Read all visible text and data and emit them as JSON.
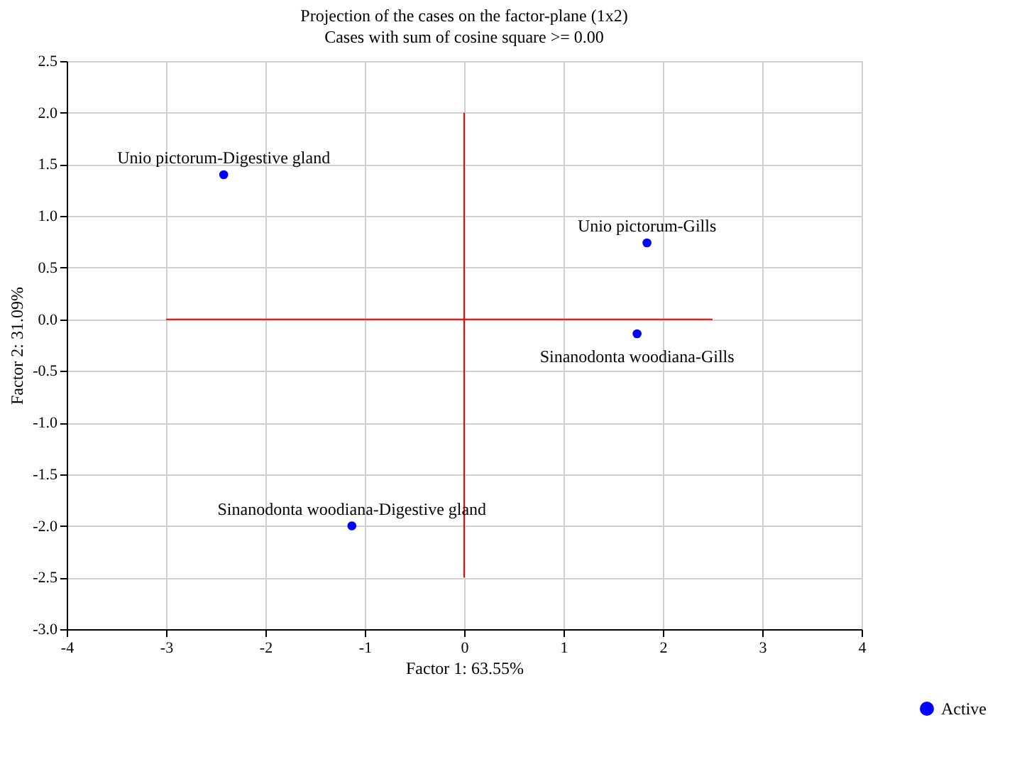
{
  "chart_data": {
    "type": "scatter",
    "title": "Projection of the cases on the factor-plane (1x2)",
    "subtitle": "Cases with sum of cosine square >=  0.00",
    "xlabel": "Factor 1: 63.55%",
    "ylabel": "Factor 2: 31.09%",
    "xlim": [
      -4,
      4
    ],
    "xticks": [
      -4,
      -3,
      -2,
      -1,
      0,
      1,
      2,
      3,
      4
    ],
    "ylim": [
      -3.0,
      2.5
    ],
    "yticks": [
      {
        "value": -3,
        "label": "-3.0"
      },
      -2.5,
      {
        "value": -2,
        "label": "-2.0"
      },
      -1.5,
      {
        "value": -1,
        "label": "-1.0"
      },
      -0.5,
      {
        "value": 0,
        "label": "0.0"
      },
      0.5,
      {
        "value": 1,
        "label": "1.0"
      },
      1.5,
      {
        "value": 2,
        "label": "2.0"
      },
      2.5
    ],
    "grid": true,
    "legend": "bottom right",
    "marker": "circle",
    "series": [
      {
        "name": "Active",
        "color": "#0000ff",
        "x": [
          -2.42,
          1.84,
          1.74,
          -1.13
        ],
        "values": [
          1.4,
          0.74,
          -0.14,
          -2.0
        ]
      },
      {
        "type": "line",
        "marker": "none",
        "color": "#ff0000",
        "x": [
          -3,
          2.5
        ],
        "values": [
          0,
          0
        ]
      },
      {
        "type": "line",
        "marker": "none",
        "color": "#ff0000",
        "x": [
          0,
          0
        ],
        "values": [
          -2.5,
          2.0
        ]
      }
    ],
    "annotations": [
      {
        "text": "Unio pictorum-Digestive gland",
        "x": -2.42,
        "y": 1.4
      },
      {
        "text": "Unio pictorum-Gills",
        "x": 1.84,
        "y": 0.74
      },
      {
        "text": "Sinanodonta woodiana-Gills",
        "x": 1.74,
        "y": -0.14
      },
      {
        "text": "Sinanodonta woodiana-Digestive gland",
        "x": -1.13,
        "y": -2.0
      }
    ]
  }
}
